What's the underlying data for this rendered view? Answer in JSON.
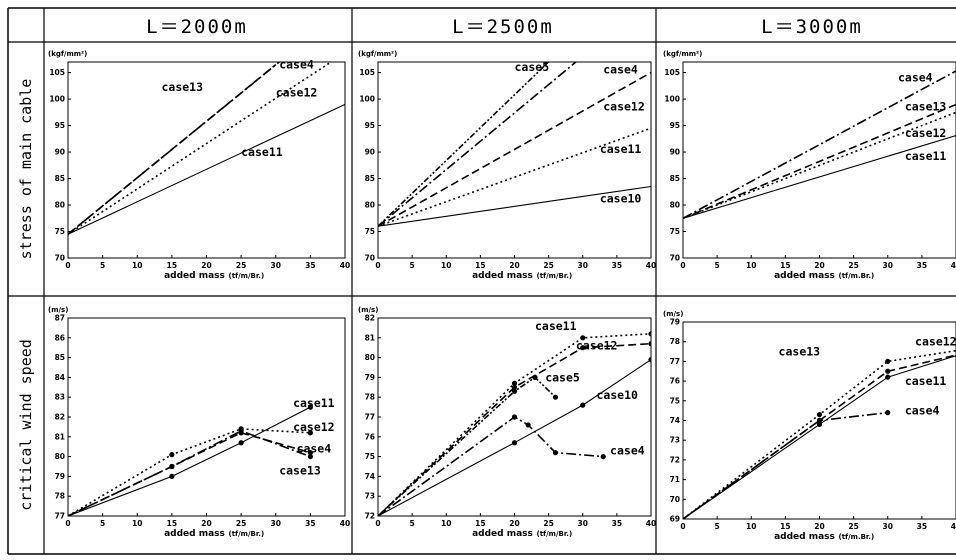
{
  "columns": [
    "L＝2000m",
    "L＝2500m",
    "L＝3000m"
  ],
  "rows": [
    "stress of main cable",
    "critical wind speed"
  ],
  "chart_data": [
    {
      "type": "line",
      "col": 0,
      "row": 0,
      "ylabel_unit": "(kgf/mm²)",
      "xlabel": "added mass",
      "xlabel_unit": "(tf/m/Br.)",
      "xlim": [
        0,
        40
      ],
      "ylim": [
        70,
        107
      ],
      "xticks": [
        0,
        5,
        10,
        15,
        20,
        25,
        30,
        35,
        40
      ],
      "yticks": [
        70,
        75,
        80,
        85,
        90,
        95,
        100,
        105
      ],
      "series": [
        {
          "name": "case4",
          "dash": "10,3,2,3",
          "markers": false,
          "points": [
            [
              0,
              74.5
            ],
            [
              30.5,
              107
            ]
          ]
        },
        {
          "name": "case13",
          "dash": "8,4",
          "markers": false,
          "points": [
            [
              0,
              74.5
            ],
            [
              30,
              106.5
            ]
          ]
        },
        {
          "name": "case12",
          "dash": "2,3",
          "markers": false,
          "points": [
            [
              0,
              74.5
            ],
            [
              38,
              107
            ]
          ]
        },
        {
          "name": "case11",
          "dash": "",
          "markers": false,
          "points": [
            [
              0,
              74.5
            ],
            [
              40,
              99
            ]
          ]
        }
      ],
      "labels": [
        {
          "text": "case4",
          "x": 30.5,
          "y": 105.8
        },
        {
          "text": "case13",
          "x": 13.5,
          "y": 101.5
        },
        {
          "text": "case12",
          "x": 30,
          "y": 100.5
        },
        {
          "text": "case11",
          "x": 25,
          "y": 89.3
        }
      ]
    },
    {
      "type": "line",
      "col": 1,
      "row": 0,
      "ylabel_unit": "(kgf/mm²)",
      "xlabel": "added mass",
      "xlabel_unit": "(tf/m/Br.)",
      "xlim": [
        0,
        40
      ],
      "ylim": [
        70,
        107
      ],
      "xticks": [
        0,
        5,
        10,
        15,
        20,
        25,
        30,
        35,
        40
      ],
      "yticks": [
        70,
        75,
        80,
        85,
        90,
        95,
        100,
        105
      ],
      "series": [
        {
          "name": "case5",
          "dash": "6,2,2,2,2,2",
          "markers": false,
          "points": [
            [
              0,
              76
            ],
            [
              25,
              107
            ]
          ]
        },
        {
          "name": "case4",
          "dash": "10,3,2,3",
          "markers": false,
          "points": [
            [
              0,
              76
            ],
            [
              29,
              107
            ]
          ]
        },
        {
          "name": "case12",
          "dash": "8,4",
          "markers": false,
          "points": [
            [
              0,
              76
            ],
            [
              40,
              105
            ]
          ]
        },
        {
          "name": "case11",
          "dash": "2,3",
          "markers": false,
          "points": [
            [
              0,
              76
            ],
            [
              40,
              94.5
            ]
          ]
        },
        {
          "name": "case10",
          "dash": "",
          "markers": false,
          "points": [
            [
              0,
              76
            ],
            [
              40,
              83.5
            ]
          ]
        }
      ],
      "labels": [
        {
          "text": "case5",
          "x": 20,
          "y": 105.3
        },
        {
          "text": "case4",
          "x": 33,
          "y": 104.8
        },
        {
          "text": "case12",
          "x": 33,
          "y": 97.8
        },
        {
          "text": "case11",
          "x": 32.5,
          "y": 89.8
        },
        {
          "text": "case10",
          "x": 32.5,
          "y": 80.5
        }
      ]
    },
    {
      "type": "line",
      "col": 2,
      "row": 0,
      "ylabel_unit": "(kgf/mm²)",
      "xlabel": "added mass",
      "xlabel_unit": "(tf/m.Br.)",
      "xlim": [
        0,
        40
      ],
      "ylim": [
        70,
        107
      ],
      "xticks": [
        0,
        5,
        10,
        15,
        20,
        25,
        30,
        35,
        40
      ],
      "yticks": [
        70,
        75,
        80,
        85,
        90,
        95,
        100,
        105
      ],
      "series": [
        {
          "name": "case4",
          "dash": "10,3,2,3",
          "markers": false,
          "points": [
            [
              0,
              77.5
            ],
            [
              41,
              106
            ]
          ]
        },
        {
          "name": "case13",
          "dash": "8,4",
          "markers": false,
          "points": [
            [
              0,
              77.5
            ],
            [
              41,
              99.5
            ]
          ]
        },
        {
          "name": "case12",
          "dash": "2,3",
          "markers": false,
          "points": [
            [
              0,
              77.5
            ],
            [
              41,
              98
            ]
          ]
        },
        {
          "name": "case11",
          "dash": "",
          "markers": false,
          "points": [
            [
              0,
              77.5
            ],
            [
              41,
              93.5
            ]
          ]
        }
      ],
      "labels": [
        {
          "text": "case4",
          "x": 31.5,
          "y": 103.3
        },
        {
          "text": "case13",
          "x": 32.5,
          "y": 97.8
        },
        {
          "text": "case12",
          "x": 32.5,
          "y": 92.8
        },
        {
          "text": "case11",
          "x": 32.5,
          "y": 88.5
        }
      ]
    },
    {
      "type": "line",
      "col": 0,
      "row": 1,
      "ylabel_unit": "(m/s)",
      "xlabel": "added mass",
      "xlabel_unit": "(tf/m/Br.)",
      "xlim": [
        0,
        40
      ],
      "ylim": [
        77,
        87
      ],
      "xticks": [
        0,
        5,
        10,
        15,
        20,
        25,
        30,
        35,
        40
      ],
      "yticks": [
        77,
        78,
        79,
        80,
        81,
        82,
        83,
        84,
        85,
        86,
        87
      ],
      "series": [
        {
          "name": "case11",
          "dash": "",
          "markers": true,
          "points": [
            [
              0,
              77
            ],
            [
              15,
              79
            ],
            [
              25,
              80.7
            ],
            [
              35,
              82.5
            ]
          ]
        },
        {
          "name": "case12",
          "dash": "2,3",
          "markers": true,
          "points": [
            [
              0,
              77
            ],
            [
              15,
              80.1
            ],
            [
              25,
              81.4
            ],
            [
              35,
              81.2
            ]
          ]
        },
        {
          "name": "case4",
          "dash": "10,3,2,3",
          "markers": true,
          "points": [
            [
              0,
              77
            ],
            [
              15,
              79.5
            ],
            [
              25,
              81.3
            ],
            [
              35,
              80
            ]
          ]
        },
        {
          "name": "case13",
          "dash": "8,4",
          "markers": true,
          "points": [
            [
              0,
              77
            ],
            [
              15,
              79.5
            ],
            [
              25,
              81.2
            ],
            [
              35,
              80.2
            ]
          ]
        }
      ],
      "labels": [
        {
          "text": "case11",
          "x": 32.5,
          "y": 82.5
        },
        {
          "text": "case12",
          "x": 32.5,
          "y": 81.3
        },
        {
          "text": "case4",
          "x": 33,
          "y": 80.2
        },
        {
          "text": "case13",
          "x": 30.5,
          "y": 79.1
        }
      ]
    },
    {
      "type": "line",
      "col": 1,
      "row": 1,
      "ylabel_unit": "(m/s)",
      "xlabel": "added mass",
      "xlabel_unit": "(tf/m/Br.)",
      "xlim": [
        0,
        40
      ],
      "ylim": [
        72,
        82
      ],
      "xticks": [
        0,
        5,
        10,
        15,
        20,
        25,
        30,
        35,
        40
      ],
      "yticks": [
        72,
        73,
        74,
        75,
        76,
        77,
        78,
        79,
        80,
        81,
        82
      ],
      "series": [
        {
          "name": "case11",
          "dash": "2,3",
          "markers": true,
          "points": [
            [
              0,
              72
            ],
            [
              20,
              78.7
            ],
            [
              30,
              81
            ],
            [
              40,
              81.2
            ]
          ]
        },
        {
          "name": "case12",
          "dash": "8,4",
          "markers": true,
          "points": [
            [
              0,
              72
            ],
            [
              20,
              78.5
            ],
            [
              30,
              80.5
            ],
            [
              40,
              80.7
            ]
          ]
        },
        {
          "name": "case5",
          "dash": "6,2,2,2,2,2",
          "markers": true,
          "points": [
            [
              0,
              72
            ],
            [
              20,
              78.3
            ],
            [
              23,
              79
            ],
            [
              26,
              78
            ]
          ]
        },
        {
          "name": "case10",
          "dash": "",
          "markers": true,
          "points": [
            [
              0,
              72
            ],
            [
              20,
              75.7
            ],
            [
              30,
              77.6
            ],
            [
              40,
              79.9
            ]
          ]
        },
        {
          "name": "case4",
          "dash": "10,3,2,3",
          "markers": true,
          "points": [
            [
              0,
              72
            ],
            [
              20,
              77
            ],
            [
              22,
              76.6
            ],
            [
              26,
              75.2
            ],
            [
              33,
              75
            ]
          ]
        }
      ],
      "labels": [
        {
          "text": "case11",
          "x": 23,
          "y": 81.4
        },
        {
          "text": "case12",
          "x": 29,
          "y": 80.4
        },
        {
          "text": "case5",
          "x": 24.5,
          "y": 78.8
        },
        {
          "text": "case10",
          "x": 32,
          "y": 77.9
        },
        {
          "text": "case4",
          "x": 34,
          "y": 75.1
        }
      ]
    },
    {
      "type": "line",
      "col": 2,
      "row": 1,
      "ylabel_unit": "(m/s)",
      "xlabel": "added mass",
      "xlabel_unit": "(tf/m.Br.)",
      "xlim": [
        0,
        40
      ],
      "ylim": [
        69,
        79
      ],
      "xticks": [
        0,
        5,
        10,
        15,
        20,
        25,
        30,
        35,
        40
      ],
      "yticks": [
        69,
        70,
        71,
        72,
        73,
        74,
        75,
        76,
        77,
        78,
        79
      ],
      "series": [
        {
          "name": "case12",
          "dash": "2,3",
          "markers": true,
          "points": [
            [
              0,
              69
            ],
            [
              20,
              74.3
            ],
            [
              30,
              77
            ],
            [
              41,
              77.6
            ]
          ]
        },
        {
          "name": "case13",
          "dash": "8,4",
          "markers": true,
          "points": [
            [
              0,
              69
            ],
            [
              20,
              74
            ],
            [
              30,
              76.5
            ],
            [
              41,
              77.4
            ]
          ]
        },
        {
          "name": "case11",
          "dash": "",
          "markers": true,
          "points": [
            [
              0,
              69
            ],
            [
              20,
              73.8
            ],
            [
              30,
              76.2
            ],
            [
              41,
              77.4
            ]
          ]
        },
        {
          "name": "case4",
          "dash": "10,3,2,3",
          "markers": true,
          "points": [
            [
              0,
              69
            ],
            [
              20,
              74
            ],
            [
              30,
              74.4
            ]
          ]
        }
      ],
      "labels": [
        {
          "text": "case12",
          "x": 34,
          "y": 77.8
        },
        {
          "text": "case13",
          "x": 14,
          "y": 77.3
        },
        {
          "text": "case11",
          "x": 32.5,
          "y": 75.8
        },
        {
          "text": "case4",
          "x": 32.5,
          "y": 74.3
        }
      ]
    }
  ]
}
